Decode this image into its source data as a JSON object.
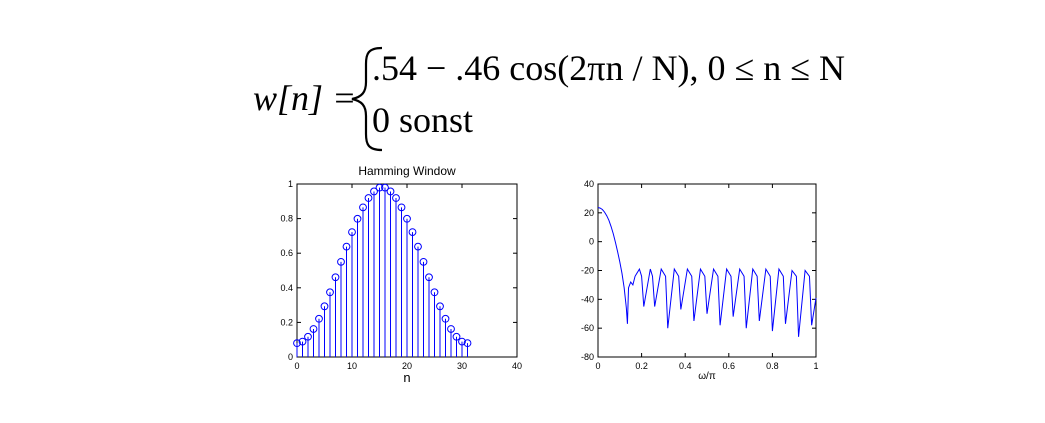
{
  "formula": {
    "lhs": "w[n] =",
    "case1": ".54 − .46 cos(2πn / N), 0 ≤ n ≤ N",
    "case2": "0 sonst"
  },
  "chart_data": [
    {
      "type": "stem",
      "title": "Hamming Window",
      "xlabel": "n",
      "ylabel": "",
      "xlim": [
        0,
        40
      ],
      "ylim": [
        0,
        1
      ],
      "xticks": [
        0,
        10,
        20,
        30,
        40
      ],
      "yticks": [
        0,
        0.2,
        0.4,
        0.6,
        0.8,
        1
      ],
      "xtick_labels": [
        "0",
        "10",
        "20",
        "30",
        "40"
      ],
      "ytick_labels": [
        "0",
        "0.2",
        "0.4",
        "0.6",
        "0.8",
        "1"
      ],
      "N": 31,
      "x": [
        0,
        1,
        2,
        3,
        4,
        5,
        6,
        7,
        8,
        9,
        10,
        11,
        12,
        13,
        14,
        15,
        16,
        17,
        18,
        19,
        20,
        21,
        22,
        23,
        24,
        25,
        26,
        27,
        28,
        29,
        30,
        31
      ],
      "values": [
        0.08,
        0.089,
        0.117,
        0.162,
        0.221,
        0.293,
        0.374,
        0.461,
        0.55,
        0.638,
        0.722,
        0.799,
        0.865,
        0.919,
        0.957,
        0.979,
        0.979,
        0.957,
        0.919,
        0.865,
        0.799,
        0.722,
        0.638,
        0.55,
        0.461,
        0.374,
        0.293,
        0.221,
        0.162,
        0.117,
        0.089,
        0.08
      ],
      "color": "#0000ff"
    },
    {
      "type": "line",
      "title": "",
      "xlabel": "ω/π",
      "ylabel": "",
      "xlim": [
        0,
        1
      ],
      "ylim": [
        -80,
        40
      ],
      "xticks": [
        0,
        0.2,
        0.4,
        0.6,
        0.8,
        1
      ],
      "yticks": [
        -80,
        -60,
        -40,
        -20,
        0,
        20,
        40
      ],
      "xtick_labels": [
        "0",
        "0.2",
        "0.4",
        "0.6",
        "0.8",
        "1"
      ],
      "ytick_labels": [
        "-80",
        "-60",
        "-40",
        "-20",
        "0",
        "20",
        "40"
      ],
      "series": [
        {
          "x": [
            0,
            0.01,
            0.02,
            0.03,
            0.04,
            0.05,
            0.06,
            0.07,
            0.08,
            0.09,
            0.1,
            0.11,
            0.12,
            0.13,
            0.135,
            0.14,
            0.15,
            0.16,
            0.17,
            0.19,
            0.2,
            0.21,
            0.24,
            0.25,
            0.26,
            0.29,
            0.31,
            0.32,
            0.35,
            0.37,
            0.38,
            0.41,
            0.43,
            0.44,
            0.47,
            0.49,
            0.5,
            0.53,
            0.55,
            0.56,
            0.59,
            0.61,
            0.62,
            0.65,
            0.67,
            0.68,
            0.71,
            0.73,
            0.74,
            0.77,
            0.79,
            0.8,
            0.83,
            0.85,
            0.86,
            0.89,
            0.91,
            0.92,
            0.95,
            0.97,
            0.98,
            1
          ],
          "y": [
            23.7,
            23.3,
            22.3,
            20.5,
            18,
            14.8,
            10.5,
            5.5,
            -0.5,
            -7,
            -14,
            -22,
            -32,
            -46,
            -57,
            -32,
            -28,
            -30,
            -24,
            -19,
            -24,
            -45,
            -19,
            -24,
            -45,
            -19,
            -24,
            -60,
            -19,
            -24,
            -47,
            -19,
            -24,
            -55,
            -19,
            -24,
            -50,
            -19,
            -24,
            -58,
            -19,
            -24,
            -52,
            -19,
            -24,
            -60,
            -19,
            -24,
            -55,
            -19,
            -24,
            -62,
            -19,
            -24,
            -57,
            -20,
            -24,
            -66,
            -20,
            -24,
            -58,
            -39
          ],
          "color": "#0000ff"
        }
      ]
    }
  ]
}
